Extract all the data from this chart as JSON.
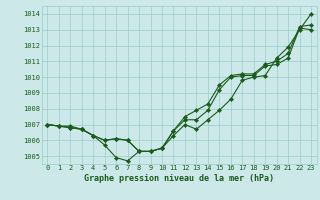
{
  "xlabel": "Graphe pression niveau de la mer (hPa)",
  "xlim": [
    -0.5,
    23.5
  ],
  "ylim": [
    1004.5,
    1014.5
  ],
  "yticks": [
    1005,
    1006,
    1007,
    1008,
    1009,
    1010,
    1011,
    1012,
    1013,
    1014
  ],
  "xticks": [
    0,
    1,
    2,
    3,
    4,
    5,
    6,
    7,
    8,
    9,
    10,
    11,
    12,
    13,
    14,
    15,
    16,
    17,
    18,
    19,
    20,
    21,
    22,
    23
  ],
  "background_color": "#cce8e8",
  "grid_color": "#99cccc",
  "line_color": "#1a5c1a",
  "line1": [
    1007.0,
    1006.9,
    1006.8,
    1006.7,
    1006.3,
    1005.7,
    1004.9,
    1004.7,
    1005.3,
    1005.3,
    1005.5,
    1006.3,
    1007.0,
    1006.7,
    1007.3,
    1007.9,
    1008.6,
    1009.8,
    1010.0,
    1010.1,
    1011.2,
    1011.9,
    1013.0,
    1014.0
  ],
  "line2": [
    1007.0,
    1006.9,
    1006.9,
    1006.7,
    1006.3,
    1006.0,
    1006.1,
    1006.0,
    1005.3,
    1005.3,
    1005.5,
    1006.6,
    1007.3,
    1007.3,
    1007.9,
    1009.2,
    1010.0,
    1010.1,
    1010.1,
    1010.7,
    1010.8,
    1011.2,
    1013.1,
    1013.0
  ],
  "line3": [
    1007.0,
    1006.9,
    1006.8,
    1006.7,
    1006.3,
    1006.0,
    1006.1,
    1006.0,
    1005.3,
    1005.3,
    1005.5,
    1006.6,
    1007.5,
    1007.9,
    1008.3,
    1009.5,
    1010.1,
    1010.2,
    1010.2,
    1010.8,
    1011.0,
    1011.5,
    1013.2,
    1013.3
  ],
  "tick_fontsize": 5.0,
  "xlabel_fontsize": 6.0
}
